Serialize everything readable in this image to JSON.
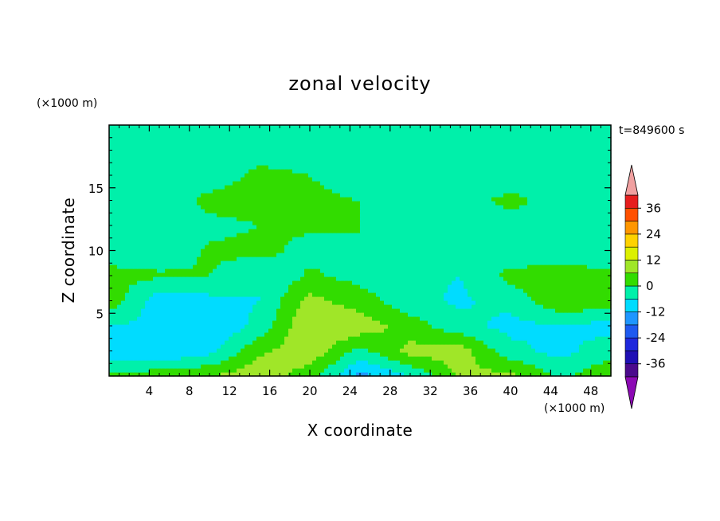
{
  "chart_data": {
    "type": "heatmap",
    "title": "zonal velocity",
    "xlabel": "X coordinate",
    "ylabel": "Z coordinate",
    "x_unit": "(×1000 m)",
    "y_unit": "(×1000 m)",
    "time_label": "t=849600 s",
    "xlim": [
      0,
      50
    ],
    "ylim": [
      0,
      20
    ],
    "x_ticks": [
      4,
      8,
      12,
      16,
      20,
      24,
      28,
      32,
      36,
      40,
      44,
      48
    ],
    "y_ticks": [
      5,
      10,
      15
    ],
    "colorbar": {
      "levels": [
        -42,
        -36,
        -30,
        -24,
        -18,
        -12,
        -6,
        0,
        6,
        12,
        18,
        24,
        30,
        36,
        42
      ],
      "tick_labels": [
        36,
        24,
        12,
        0,
        -12,
        -24,
        -36
      ],
      "colors": [
        "#4b0a8c",
        "#1f0fb4",
        "#1e28dc",
        "#1e5af0",
        "#1e96ff",
        "#00dcff",
        "#00f0aa",
        "#32dc00",
        "#a0e628",
        "#dcf000",
        "#ffd200",
        "#ff9600",
        "#ff5000",
        "#e61e1e"
      ],
      "under_color": "#8c0ab4",
      "over_color": "#f0a0a0"
    },
    "field_description_levels_x": [
      0,
      5,
      10,
      15,
      20,
      25,
      30,
      35,
      40,
      45,
      50
    ],
    "field_description_levels_z": [
      0,
      2,
      4,
      6,
      8,
      10,
      12,
      14,
      16,
      18,
      20
    ],
    "field_values": [
      [
        2,
        4,
        6,
        10,
        3,
        -14,
        -6,
        7,
        8,
        -1,
        5
      ],
      [
        -10,
        -12,
        -8,
        5,
        10,
        -2,
        8,
        9,
        -4,
        -8,
        -2
      ],
      [
        -6,
        -8,
        -12,
        -4,
        12,
        10,
        3,
        -4,
        -8,
        -6,
        -9
      ],
      [
        4,
        -10,
        -8,
        -6,
        8,
        3,
        -4,
        -7,
        -4,
        5,
        4
      ],
      [
        2,
        1,
        0,
        -6,
        1,
        -2,
        -5,
        -6,
        2,
        3,
        1
      ],
      [
        -3,
        -4,
        1,
        2,
        -2,
        0,
        -3,
        -4,
        -4,
        -4,
        -3
      ],
      [
        -4,
        -3,
        -2,
        0,
        1,
        0,
        -4,
        -3,
        -4,
        -2,
        -4
      ],
      [
        -5,
        -4,
        2,
        3,
        1,
        0,
        -2,
        -3,
        2,
        -3,
        -3
      ],
      [
        -5,
        -4,
        -4,
        2,
        0,
        -2,
        -1,
        -3,
        -4,
        -4,
        -4
      ],
      [
        -5,
        -5,
        -4,
        -3,
        -4,
        -6,
        -3,
        -5,
        -5,
        -5,
        -5
      ],
      [
        -5,
        -5,
        -5,
        -5,
        -5,
        -5,
        -6,
        -5,
        -5,
        -5,
        -5
      ]
    ]
  }
}
